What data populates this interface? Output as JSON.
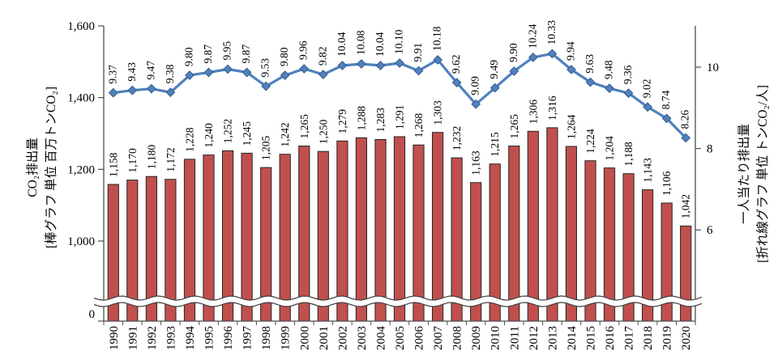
{
  "chart_data": {
    "type": "combo-bar-line",
    "categories": [
      "1990",
      "1991",
      "1992",
      "1993",
      "1994",
      "1995",
      "1996",
      "1997",
      "1998",
      "1999",
      "2000",
      "2001",
      "2002",
      "2003",
      "2004",
      "2005",
      "2006",
      "2007",
      "2008",
      "2009",
      "2010",
      "2011",
      "2012",
      "2013",
      "2014",
      "2015",
      "2016",
      "2017",
      "2018",
      "2019",
      "2020"
    ],
    "series": [
      {
        "name": "CO₂排出量",
        "type": "bar",
        "axis": "left",
        "values": [
          1158,
          1170,
          1180,
          1172,
          1228,
          1240,
          1252,
          1245,
          1205,
          1242,
          1265,
          1250,
          1279,
          1288,
          1283,
          1291,
          1268,
          1303,
          1232,
          1163,
          1215,
          1265,
          1306,
          1316,
          1264,
          1224,
          1204,
          1188,
          1143,
          1106,
          1042
        ]
      },
      {
        "name": "一人当たり排出量",
        "type": "line",
        "axis": "right",
        "values": [
          9.37,
          9.43,
          9.47,
          9.38,
          9.8,
          9.87,
          9.95,
          9.87,
          9.53,
          9.8,
          9.96,
          9.82,
          10.04,
          10.08,
          10.04,
          10.1,
          9.91,
          10.18,
          9.62,
          9.09,
          9.49,
          9.9,
          10.24,
          10.33,
          9.94,
          9.63,
          9.48,
          9.36,
          9.02,
          8.74,
          8.26
        ]
      }
    ],
    "left_axis": {
      "title": "CO₂排出量",
      "subtitle": "[棒グラフ 単位 百万トンCO₂]",
      "ticks": [
        {
          "label": "0",
          "value": 0
        },
        {
          "label": "1,000",
          "value": 1000
        },
        {
          "label": "1,200",
          "value": 1200
        },
        {
          "label": "1,400",
          "value": 1400
        },
        {
          "label": "1,600",
          "value": 1600
        }
      ],
      "ylim": [
        0,
        1600
      ],
      "axis_break": true
    },
    "right_axis": {
      "title": "一人当たり排出量",
      "subtitle": "[折れ線グラフ 単位 トンCO₂/人]",
      "ticks": [
        {
          "label": "6",
          "value": 6
        },
        {
          "label": "8",
          "value": 8
        },
        {
          "label": "10",
          "value": 10
        }
      ],
      "axis_break": true
    },
    "data_labels": {
      "show": true,
      "rotation": -90
    },
    "grid": false,
    "legend": "none",
    "colors": {
      "bar_fill": "#C0504D",
      "bar_border": "#262626",
      "line": "#4F81BD",
      "marker_border": "#385D8A",
      "axis": "#4D4D4D",
      "text": "#000000",
      "background": "#FFFFFF"
    }
  }
}
